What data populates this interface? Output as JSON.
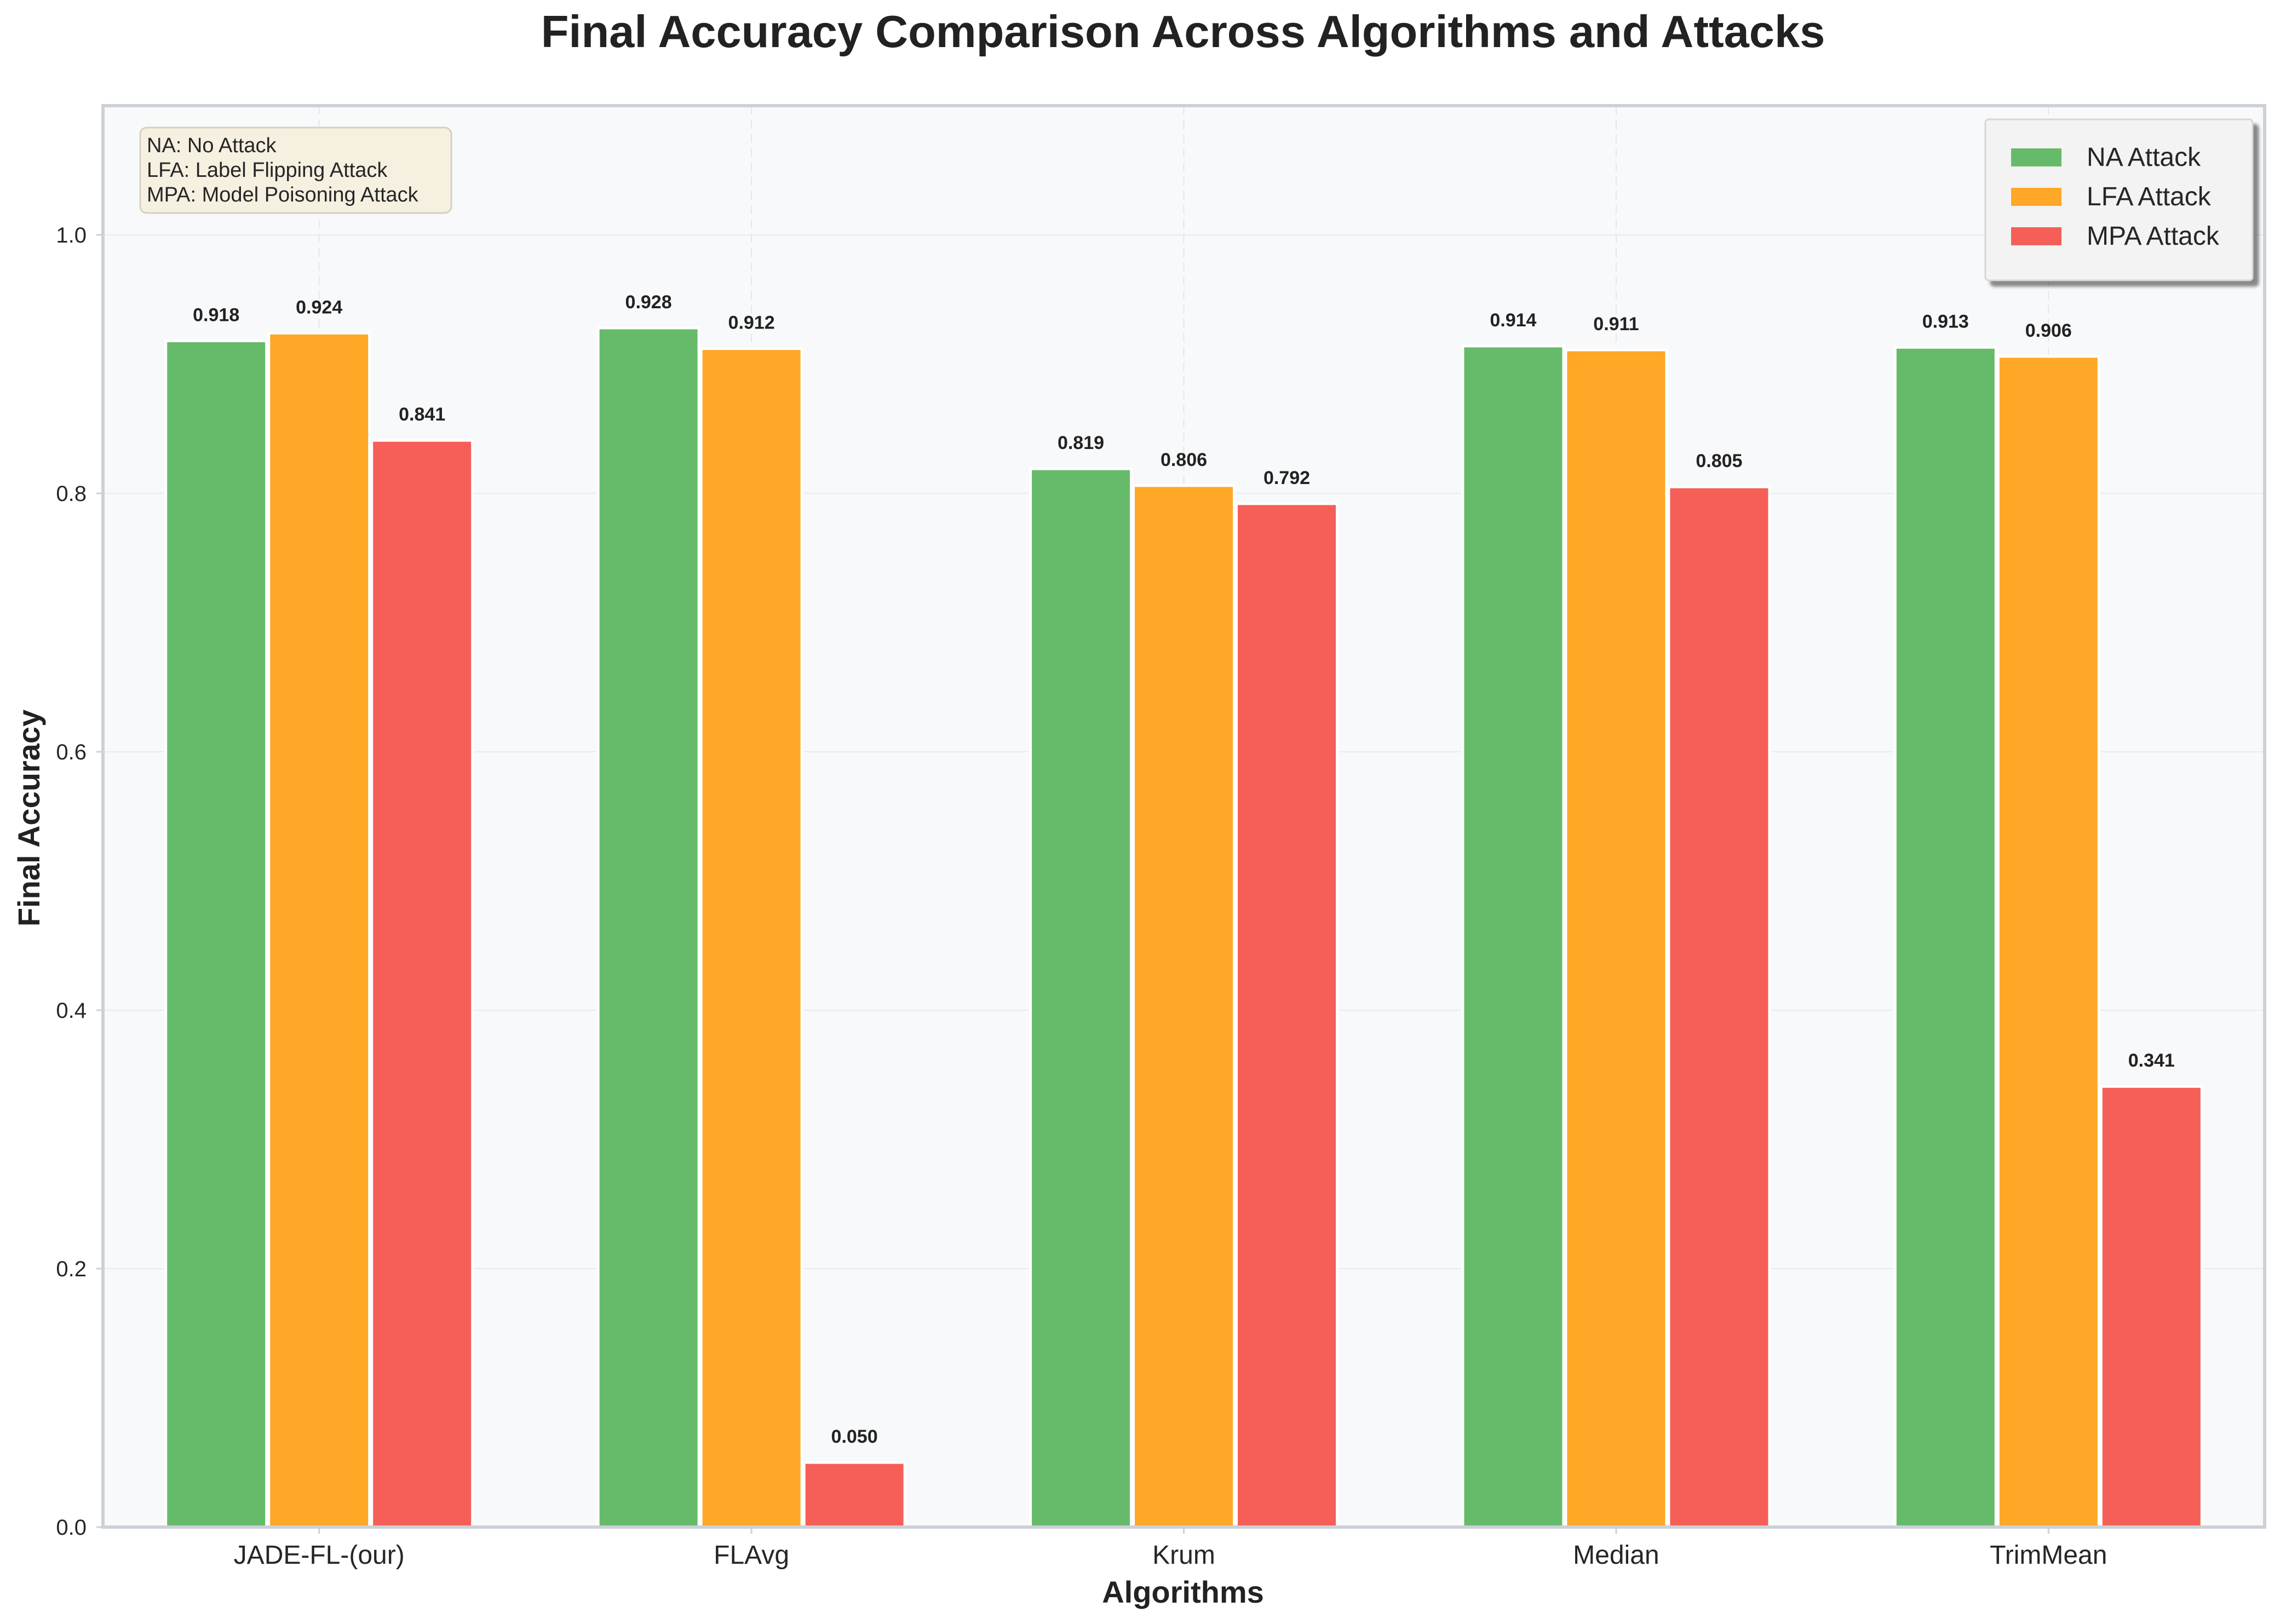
{
  "chart_data": {
    "type": "bar",
    "title": "Final Accuracy Comparison Across Algorithms and Attacks",
    "xlabel": "Algorithms",
    "ylabel": "Final Accuracy",
    "categories": [
      "JADE-FL-(our)",
      "FLAvg",
      "Krum",
      "Median",
      "TrimMean"
    ],
    "series": [
      {
        "name": "NA Attack",
        "color": "#66BB6A",
        "values": [
          0.918,
          0.928,
          0.819,
          0.914,
          0.913
        ]
      },
      {
        "name": "LFA Attack",
        "color": "#FFA726",
        "values": [
          0.924,
          0.912,
          0.806,
          0.911,
          0.906
        ]
      },
      {
        "name": "MPA Attack",
        "color": "#F65F57",
        "values": [
          0.841,
          0.05,
          0.792,
          0.805,
          0.341
        ]
      }
    ],
    "ylim": [
      0,
      1.1
    ],
    "yticks": [
      0.0,
      0.2,
      0.4,
      0.6,
      0.8,
      1.0
    ],
    "ytick_labels": [
      "0.0",
      "0.2",
      "0.4",
      "0.6",
      "0.8",
      "1.0"
    ],
    "grid": true,
    "legend_position": "top-right",
    "annotation_lines": [
      "NA: No Attack",
      "LFA: Label Flipping Attack",
      "MPA: Model Poisoning Attack"
    ],
    "annotation_position": "top-left"
  }
}
